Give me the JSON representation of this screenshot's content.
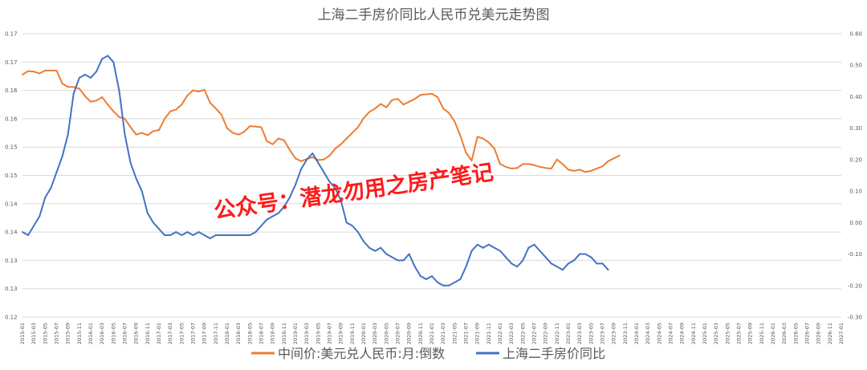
{
  "chart_data": {
    "type": "line",
    "title": "上海二手房价同比人民币兑美元走势图",
    "watermark": "公众号：潜龙勿用之房产笔记",
    "grid": true,
    "legend_position": "bottom",
    "y_left": {
      "ticks": [
        "0.12",
        "0.13",
        "0.13",
        "0.14",
        "0.14",
        "0.15",
        "0.15",
        "0.16",
        "0.16",
        "0.17",
        "0.17"
      ],
      "min": 0.12,
      "max": 0.17
    },
    "y_right": {
      "ticks": [
        "-0.30",
        "-0.20",
        "-0.10",
        "0.00",
        "0.10",
        "0.20",
        "0.30",
        "0.40",
        "0.50",
        "0.60"
      ],
      "min": -0.3,
      "max": 0.6
    },
    "x_labels": [
      "2015-01",
      "2015-03",
      "2015-05",
      "2015-07",
      "2015-09",
      "2015-11",
      "2016-01",
      "2016-03",
      "2016-05",
      "2016-07",
      "2016-09",
      "2016-11",
      "2017-01",
      "2017-03",
      "2017-05",
      "2017-07",
      "2017-09",
      "2017-11",
      "2018-01",
      "2018-03",
      "2018-05",
      "2018-07",
      "2018-09",
      "2018-11",
      "2019-01",
      "2019-03",
      "2019-05",
      "2019-07",
      "2019-09",
      "2019-11",
      "2020-01",
      "2020-03",
      "2020-05",
      "2020-07",
      "2020-09",
      "2020-11",
      "2021-01",
      "2021-03",
      "2021-05",
      "2021-07",
      "2021-09",
      "2021-11",
      "2022-01",
      "2022-03",
      "2022-05",
      "2022-07",
      "2022-09",
      "2022-11",
      "2023-01",
      "2023-03",
      "2023-05",
      "2023-07",
      "2023-09",
      "2023-11",
      "2024-01",
      "2024-03",
      "2024-05",
      "2024-07",
      "2024-09",
      "2024-11",
      "2025-01",
      "2025-03",
      "2025-05",
      "2025-07",
      "2025-09",
      "2025-11",
      "2026-01",
      "2026-03",
      "2026-05",
      "2026-07",
      "2026-09",
      "2026-11",
      "2027-01"
    ],
    "series": [
      {
        "name": "中间价:美元兑人民币:月:倒数",
        "axis": "left",
        "color": "#ed7d31",
        "values": [
          0.1628,
          0.1634,
          0.1633,
          0.163,
          0.1635,
          0.1635,
          0.1635,
          0.1612,
          0.1606,
          0.1606,
          0.1603,
          0.159,
          0.158,
          0.1582,
          0.1588,
          0.1575,
          0.1563,
          0.1553,
          0.155,
          0.1535,
          0.1522,
          0.1525,
          0.1521,
          0.1528,
          0.153,
          0.155,
          0.1563,
          0.1566,
          0.1575,
          0.1591,
          0.16,
          0.1598,
          0.1601,
          0.1578,
          0.1568,
          0.1557,
          0.1533,
          0.1525,
          0.1522,
          0.1527,
          0.1537,
          0.1536,
          0.1535,
          0.151,
          0.1505,
          0.1515,
          0.1512,
          0.1495,
          0.148,
          0.1475,
          0.1479,
          0.1482,
          0.1477,
          0.1478,
          0.1485,
          0.1497,
          0.1505,
          0.1515,
          0.1525,
          0.1535,
          0.1551,
          0.1562,
          0.1568,
          0.1576,
          0.157,
          0.1583,
          0.1585,
          0.1575,
          0.158,
          0.1585,
          0.1592,
          0.1593,
          0.1594,
          0.1588,
          0.1568,
          0.156,
          0.1545,
          0.152,
          0.149,
          0.1476,
          0.1518,
          0.1515,
          0.1508,
          0.1497,
          0.147,
          0.1465,
          0.1462,
          0.1463,
          0.147,
          0.147,
          0.1468,
          0.1465,
          0.1463,
          0.1462,
          0.1478,
          0.147,
          0.146,
          0.1458,
          0.146,
          0.1456,
          0.1458,
          0.1462,
          0.1466,
          0.1475,
          0.148,
          0.1485
        ]
      },
      {
        "name": "上海二手房价同比",
        "axis": "right",
        "color": "#4472c4",
        "values": [
          -0.03,
          -0.04,
          -0.01,
          0.02,
          0.08,
          0.11,
          0.16,
          0.21,
          0.28,
          0.41,
          0.46,
          0.47,
          0.46,
          0.48,
          0.52,
          0.53,
          0.51,
          0.42,
          0.28,
          0.19,
          0.14,
          0.1,
          0.03,
          0.0,
          -0.02,
          -0.04,
          -0.04,
          -0.03,
          -0.04,
          -0.03,
          -0.04,
          -0.03,
          -0.04,
          -0.05,
          -0.04,
          -0.04,
          -0.04,
          -0.04,
          -0.04,
          -0.04,
          -0.04,
          -0.03,
          -0.01,
          0.01,
          0.02,
          0.03,
          0.05,
          0.08,
          0.12,
          0.17,
          0.2,
          0.22,
          0.19,
          0.16,
          0.13,
          0.11,
          0.07,
          0.0,
          -0.01,
          -0.03,
          -0.06,
          -0.08,
          -0.09,
          -0.08,
          -0.1,
          -0.11,
          -0.12,
          -0.12,
          -0.1,
          -0.14,
          -0.17,
          -0.18,
          -0.17,
          -0.19,
          -0.2,
          -0.2,
          -0.19,
          -0.18,
          -0.14,
          -0.09,
          -0.07,
          -0.08,
          -0.07,
          -0.08,
          -0.09,
          -0.11,
          -0.13,
          -0.14,
          -0.12,
          -0.08,
          -0.07,
          -0.09,
          -0.11,
          -0.13,
          -0.14,
          -0.15,
          -0.13,
          -0.12,
          -0.1,
          -0.1,
          -0.11,
          -0.13,
          -0.13,
          -0.15
        ]
      }
    ]
  }
}
